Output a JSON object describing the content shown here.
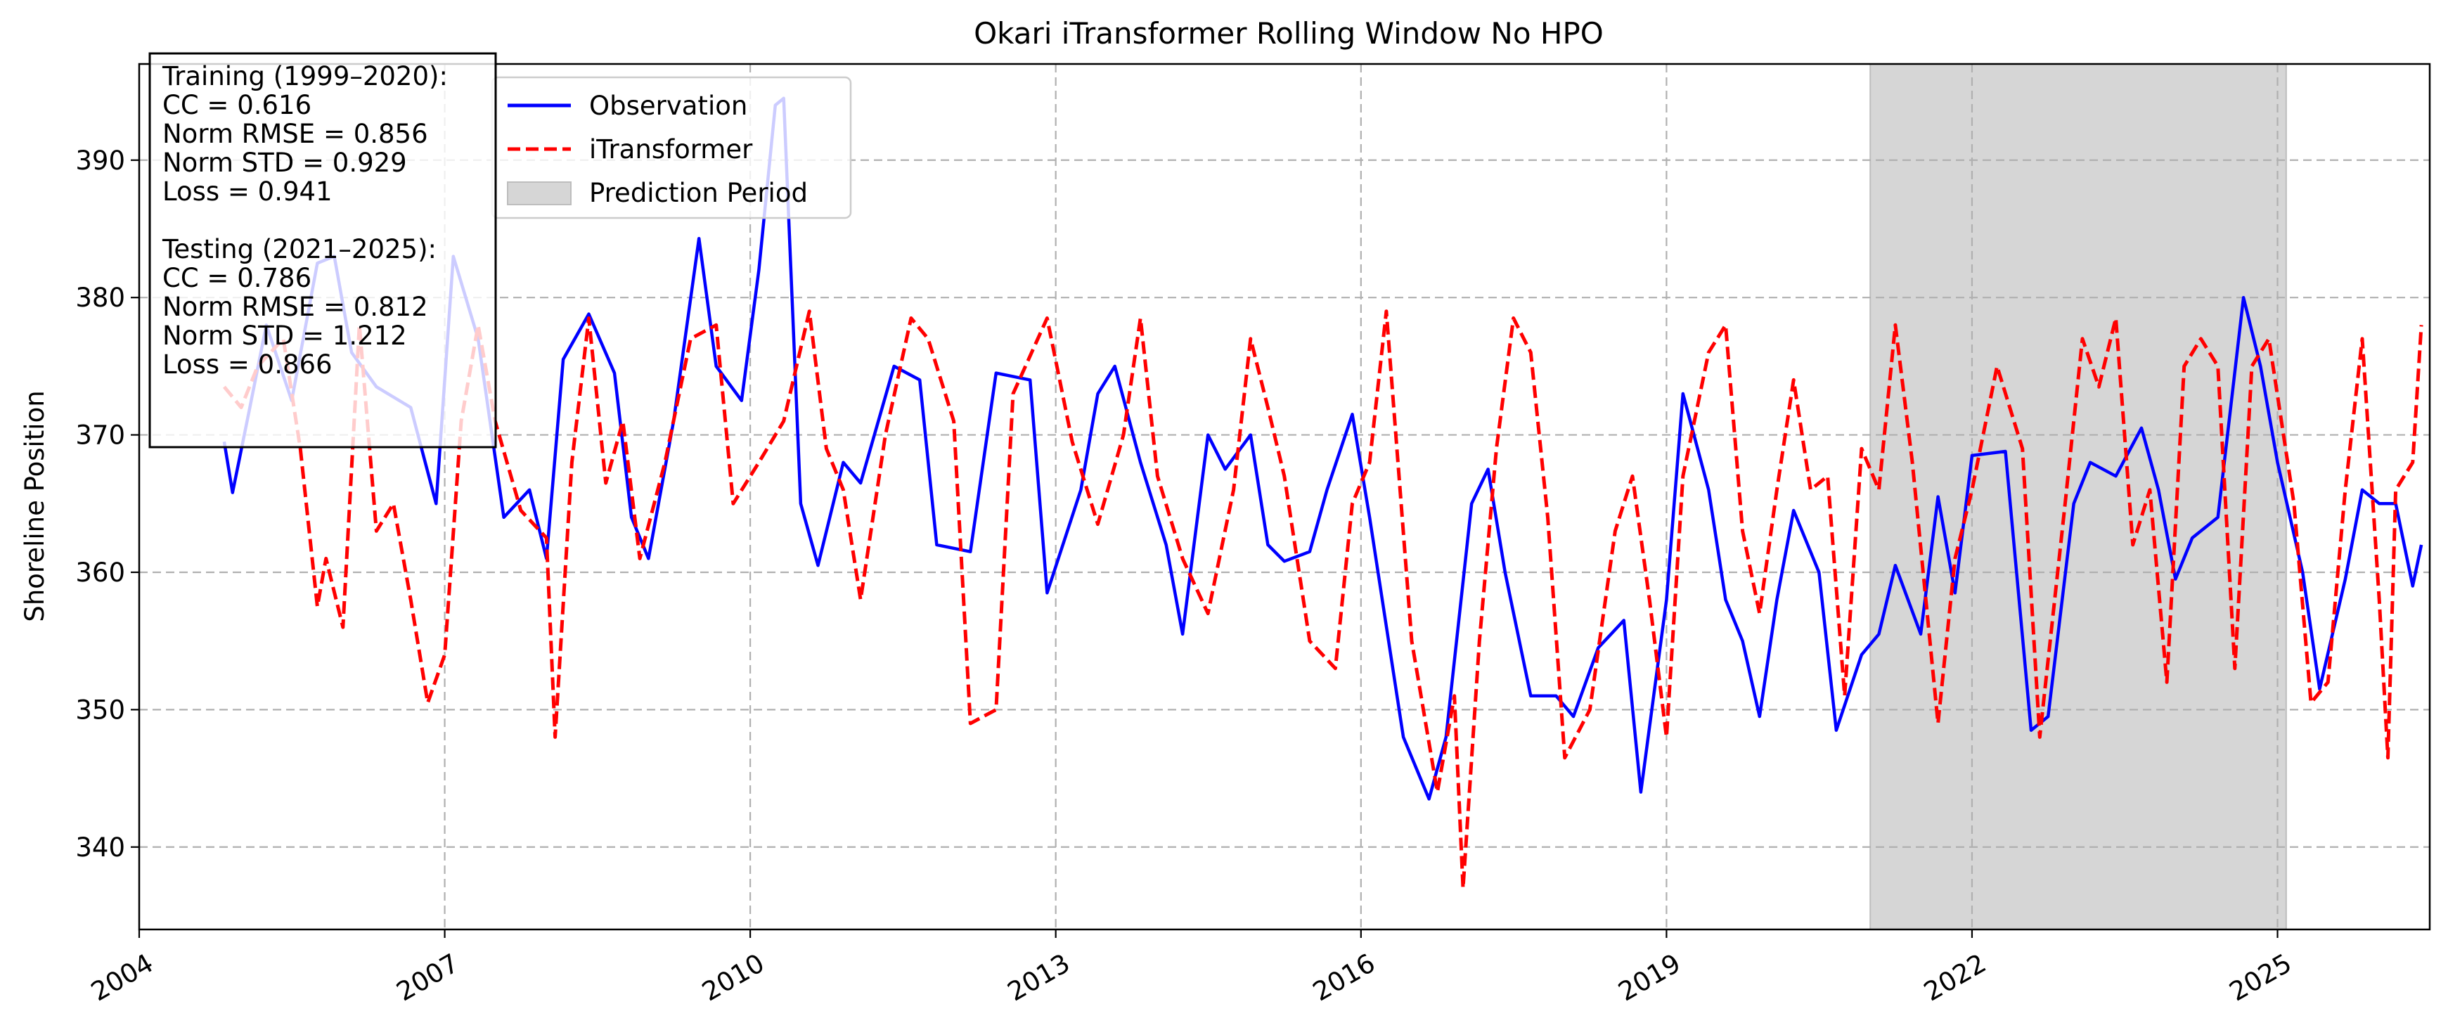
{
  "chart_data": {
    "type": "line",
    "title": "Okari iTransformer Rolling Window No HPO",
    "xlabel": "",
    "ylabel": "Shoreline Position",
    "xlim": [
      "2004-01-01",
      "2026-07-01"
    ],
    "ylim": [
      334,
      397
    ],
    "x_ticks": [
      {
        "date": "2004-01-01",
        "label": "2004"
      },
      {
        "date": "2007-01-01",
        "label": "2007"
      },
      {
        "date": "2010-01-01",
        "label": "2010"
      },
      {
        "date": "2013-01-01",
        "label": "2013"
      },
      {
        "date": "2016-01-01",
        "label": "2016"
      },
      {
        "date": "2019-01-01",
        "label": "2019"
      },
      {
        "date": "2022-01-01",
        "label": "2022"
      },
      {
        "date": "2025-01-01",
        "label": "2025"
      }
    ],
    "y_ticks": [
      340,
      350,
      360,
      370,
      380,
      390
    ],
    "grid": true,
    "legend_position": "top-left",
    "prediction_period": {
      "name": "Prediction Period",
      "start": "2021-01-01",
      "end": "2025-02-01",
      "color": "#d6d6d6"
    },
    "series": [
      {
        "name": "Observation",
        "color": "#0000ff",
        "style": "solid",
        "points": [
          [
            "2004-11-01",
            369.5
          ],
          [
            "2004-12-01",
            365.8
          ],
          [
            "2005-02-01",
            372
          ],
          [
            "2005-04-01",
            378
          ],
          [
            "2005-07-01",
            372.5
          ],
          [
            "2005-10-01",
            382.5
          ],
          [
            "2005-12-01",
            383
          ],
          [
            "2006-02-01",
            376
          ],
          [
            "2006-05-01",
            373.5
          ],
          [
            "2006-09-01",
            372
          ],
          [
            "2006-12-01",
            365
          ],
          [
            "2007-02-01",
            383
          ],
          [
            "2007-05-01",
            377
          ],
          [
            "2007-08-01",
            364
          ],
          [
            "2007-11-01",
            366
          ],
          [
            "2008-01-01",
            361
          ],
          [
            "2008-03-01",
            375.5
          ],
          [
            "2008-06-01",
            378.8
          ],
          [
            "2008-09-01",
            374.5
          ],
          [
            "2008-11-01",
            364
          ],
          [
            "2009-01-01",
            361
          ],
          [
            "2009-04-01",
            371
          ],
          [
            "2009-07-01",
            384.3
          ],
          [
            "2009-09-01",
            375
          ],
          [
            "2009-12-01",
            372.5
          ],
          [
            "2010-02-01",
            382
          ],
          [
            "2010-04-01",
            394
          ],
          [
            "2010-05-01",
            394.5
          ],
          [
            "2010-07-01",
            365
          ],
          [
            "2010-09-01",
            360.5
          ],
          [
            "2010-12-01",
            368
          ],
          [
            "2011-02-01",
            366.5
          ],
          [
            "2011-06-01",
            375
          ],
          [
            "2011-09-01",
            374
          ],
          [
            "2011-11-01",
            362
          ],
          [
            "2012-03-01",
            361.5
          ],
          [
            "2012-06-01",
            374.5
          ],
          [
            "2012-10-01",
            374
          ],
          [
            "2012-12-01",
            358.5
          ],
          [
            "2013-04-01",
            366
          ],
          [
            "2013-06-01",
            373
          ],
          [
            "2013-08-01",
            375
          ],
          [
            "2013-11-01",
            368
          ],
          [
            "2014-02-01",
            362
          ],
          [
            "2014-04-01",
            355.5
          ],
          [
            "2014-07-01",
            370
          ],
          [
            "2014-09-01",
            367.5
          ],
          [
            "2014-12-01",
            370
          ],
          [
            "2015-02-01",
            362
          ],
          [
            "2015-04-01",
            360.8
          ],
          [
            "2015-07-01",
            361.5
          ],
          [
            "2015-09-01",
            366
          ],
          [
            "2015-12-01",
            371.5
          ],
          [
            "2016-02-01",
            364
          ],
          [
            "2016-06-01",
            348
          ],
          [
            "2016-09-01",
            343.5
          ],
          [
            "2016-11-01",
            348
          ],
          [
            "2017-02-01",
            365
          ],
          [
            "2017-04-01",
            367.5
          ],
          [
            "2017-06-01",
            360
          ],
          [
            "2017-09-01",
            351
          ],
          [
            "2017-12-01",
            351
          ],
          [
            "2018-02-01",
            349.5
          ],
          [
            "2018-05-01",
            354.5
          ],
          [
            "2018-08-01",
            356.5
          ],
          [
            "2018-10-01",
            344
          ],
          [
            "2019-01-01",
            358
          ],
          [
            "2019-03-01",
            373
          ],
          [
            "2019-06-01",
            366
          ],
          [
            "2019-08-01",
            358
          ],
          [
            "2019-10-01",
            355
          ],
          [
            "2019-12-01",
            349.5
          ],
          [
            "2020-02-01",
            358
          ],
          [
            "2020-04-01",
            364.5
          ],
          [
            "2020-07-01",
            360
          ],
          [
            "2020-09-01",
            348.5
          ],
          [
            "2020-12-01",
            354
          ],
          [
            "2021-02-01",
            355.5
          ],
          [
            "2021-04-01",
            360.5
          ],
          [
            "2021-07-01",
            355.5
          ],
          [
            "2021-09-01",
            365.5
          ],
          [
            "2021-11-01",
            358.5
          ],
          [
            "2022-01-01",
            368.5
          ],
          [
            "2022-05-01",
            368.8
          ],
          [
            "2022-08-01",
            348.5
          ],
          [
            "2022-10-01",
            349.5
          ],
          [
            "2023-01-01",
            365
          ],
          [
            "2023-03-01",
            368
          ],
          [
            "2023-06-01",
            367
          ],
          [
            "2023-09-01",
            370.5
          ],
          [
            "2023-11-01",
            366
          ],
          [
            "2024-01-01",
            359.5
          ],
          [
            "2024-03-01",
            362.5
          ],
          [
            "2024-06-01",
            364
          ],
          [
            "2024-09-01",
            380
          ],
          [
            "2024-11-01",
            375
          ],
          [
            "2025-01-01",
            368
          ],
          [
            "2025-04-01",
            360
          ],
          [
            "2025-06-01",
            351.5
          ],
          [
            "2025-09-01",
            359.5
          ],
          [
            "2025-11-01",
            366
          ],
          [
            "2026-01-01",
            365
          ],
          [
            "2026-03-01",
            365
          ],
          [
            "2026-05-01",
            359
          ],
          [
            "2026-06-01",
            362
          ]
        ]
      },
      {
        "name": "iTransformer",
        "color": "#ff0000",
        "style": "dashed",
        "points": [
          [
            "2004-11-01",
            373.5
          ],
          [
            "2005-01-01",
            372
          ],
          [
            "2005-03-01",
            375
          ],
          [
            "2005-06-01",
            377
          ],
          [
            "2005-08-01",
            369
          ],
          [
            "2005-10-01",
            357.5
          ],
          [
            "2005-11-01",
            361
          ],
          [
            "2006-01-01",
            356
          ],
          [
            "2006-03-01",
            378
          ],
          [
            "2006-05-01",
            363
          ],
          [
            "2006-07-01",
            365
          ],
          [
            "2006-09-01",
            358
          ],
          [
            "2006-11-01",
            350.5
          ],
          [
            "2007-01-01",
            354
          ],
          [
            "2007-03-01",
            371
          ],
          [
            "2007-05-01",
            378
          ],
          [
            "2007-07-01",
            371
          ],
          [
            "2007-10-01",
            364.5
          ],
          [
            "2008-01-01",
            362.5
          ],
          [
            "2008-02-01",
            348
          ],
          [
            "2008-04-01",
            368
          ],
          [
            "2008-06-01",
            378.5
          ],
          [
            "2008-08-01",
            366.5
          ],
          [
            "2008-10-01",
            371
          ],
          [
            "2008-12-01",
            361
          ],
          [
            "2009-03-01",
            368
          ],
          [
            "2009-06-01",
            377
          ],
          [
            "2009-09-01",
            378
          ],
          [
            "2009-11-01",
            365
          ],
          [
            "2010-02-01",
            368
          ],
          [
            "2010-05-01",
            371
          ],
          [
            "2010-08-01",
            379
          ],
          [
            "2010-10-01",
            369
          ],
          [
            "2010-12-01",
            366
          ],
          [
            "2011-02-01",
            358
          ],
          [
            "2011-05-01",
            370
          ],
          [
            "2011-08-01",
            378.5
          ],
          [
            "2011-10-01",
            377
          ],
          [
            "2012-01-01",
            371
          ],
          [
            "2012-03-01",
            349
          ],
          [
            "2012-06-01",
            350
          ],
          [
            "2012-08-01",
            373
          ],
          [
            "2012-12-01",
            378.5
          ],
          [
            "2013-03-01",
            369.5
          ],
          [
            "2013-06-01",
            363.5
          ],
          [
            "2013-09-01",
            370
          ],
          [
            "2013-11-01",
            378.5
          ],
          [
            "2014-01-01",
            367
          ],
          [
            "2014-04-01",
            361
          ],
          [
            "2014-07-01",
            357
          ],
          [
            "2014-10-01",
            366
          ],
          [
            "2014-12-01",
            377
          ],
          [
            "2015-02-01",
            372
          ],
          [
            "2015-04-01",
            367
          ],
          [
            "2015-07-01",
            355
          ],
          [
            "2015-10-01",
            353
          ],
          [
            "2015-12-01",
            365
          ],
          [
            "2016-02-01",
            368
          ],
          [
            "2016-04-01",
            379
          ],
          [
            "2016-07-01",
            355
          ],
          [
            "2016-10-01",
            344
          ],
          [
            "2016-12-01",
            351
          ],
          [
            "2017-01-01",
            337
          ],
          [
            "2017-03-01",
            355
          ],
          [
            "2017-05-01",
            369
          ],
          [
            "2017-07-01",
            378.5
          ],
          [
            "2017-09-01",
            376
          ],
          [
            "2017-11-01",
            364
          ],
          [
            "2018-01-01",
            346.5
          ],
          [
            "2018-04-01",
            350
          ],
          [
            "2018-07-01",
            363
          ],
          [
            "2018-09-01",
            367
          ],
          [
            "2018-11-01",
            358
          ],
          [
            "2019-01-01",
            348
          ],
          [
            "2019-03-01",
            367
          ],
          [
            "2019-06-01",
            376
          ],
          [
            "2019-08-01",
            378
          ],
          [
            "2019-10-01",
            363
          ],
          [
            "2019-12-01",
            357
          ],
          [
            "2020-02-01",
            366
          ],
          [
            "2020-04-01",
            374
          ],
          [
            "2020-06-01",
            366
          ],
          [
            "2020-08-01",
            367
          ],
          [
            "2020-10-01",
            351
          ],
          [
            "2020-12-01",
            369
          ],
          [
            "2021-02-01",
            366
          ],
          [
            "2021-04-01",
            378
          ],
          [
            "2021-06-01",
            368
          ],
          [
            "2021-09-01",
            349
          ],
          [
            "2021-11-01",
            361
          ],
          [
            "2022-01-01",
            366
          ],
          [
            "2022-04-01",
            375
          ],
          [
            "2022-07-01",
            369
          ],
          [
            "2022-09-01",
            348
          ],
          [
            "2022-12-01",
            365
          ],
          [
            "2023-02-01",
            377
          ],
          [
            "2023-04-01",
            373.5
          ],
          [
            "2023-06-01",
            378.5
          ],
          [
            "2023-08-01",
            362
          ],
          [
            "2023-10-01",
            366
          ],
          [
            "2023-12-01",
            352
          ],
          [
            "2024-02-01",
            375
          ],
          [
            "2024-04-01",
            377
          ],
          [
            "2024-06-01",
            375
          ],
          [
            "2024-08-01",
            353
          ],
          [
            "2024-10-01",
            375
          ],
          [
            "2024-12-01",
            377
          ],
          [
            "2025-03-01",
            365
          ],
          [
            "2025-05-01",
            350.5
          ],
          [
            "2025-07-01",
            352
          ],
          [
            "2025-09-01",
            366
          ],
          [
            "2025-11-01",
            377
          ],
          [
            "2026-01-01",
            358
          ],
          [
            "2026-02-01",
            346.5
          ],
          [
            "2026-03-01",
            366
          ],
          [
            "2026-05-01",
            368
          ],
          [
            "2026-06-01",
            378
          ]
        ]
      }
    ],
    "legend": [
      {
        "label": "Observation",
        "kind": "line",
        "color": "#0000ff"
      },
      {
        "label": "iTransformer",
        "kind": "dashed",
        "color": "#ff0000"
      },
      {
        "label": "Prediction Period",
        "kind": "patch",
        "color": "#d6d6d6"
      }
    ],
    "stats_box": [
      "Training (1999–2020):",
      "CC = 0.616",
      "Norm RMSE = 0.856",
      "Norm STD = 0.929",
      "Loss = 0.941",
      "",
      "Testing (2021–2025):",
      "CC = 0.786",
      "Norm RMSE = 0.812",
      "Norm STD = 1.212",
      "Loss = 0.866"
    ]
  }
}
